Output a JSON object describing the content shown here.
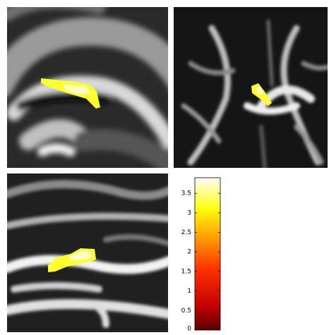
{
  "colorbar": {
    "lim": [
      0,
      3.9
    ],
    "ticks": [
      0,
      0.5,
      1,
      1.5,
      2,
      2.5,
      3,
      3.5
    ]
  }
}
